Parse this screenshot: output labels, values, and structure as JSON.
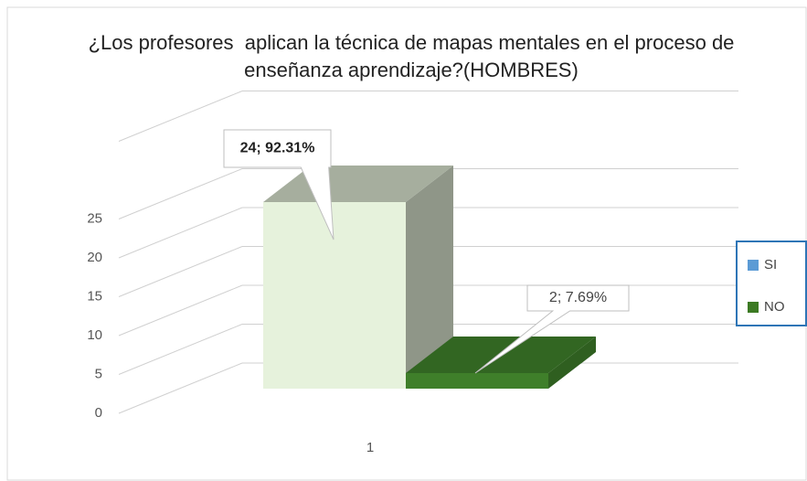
{
  "chart_data": {
    "type": "bar3d",
    "title": "¿Los profesores  aplican la técnica de mapas mentales en el proceso de enseñanza aprendizaje?(HOMBRES)",
    "categories": [
      "1"
    ],
    "series": [
      {
        "name": "SI",
        "color": "#5b9bd5",
        "bar_color": "#e6f2dc",
        "values": [
          24
        ],
        "value_labels": [
          "24;  92.31%"
        ]
      },
      {
        "name": "NO",
        "color": "#3c7a23",
        "bar_color": "#3f7f2a",
        "values": [
          2
        ],
        "value_labels": [
          "2; 7.69%"
        ]
      }
    ],
    "ylim": [
      0,
      35
    ],
    "yticks": [
      0,
      5,
      10,
      15,
      20,
      25
    ],
    "grid": true,
    "legend": "right"
  }
}
